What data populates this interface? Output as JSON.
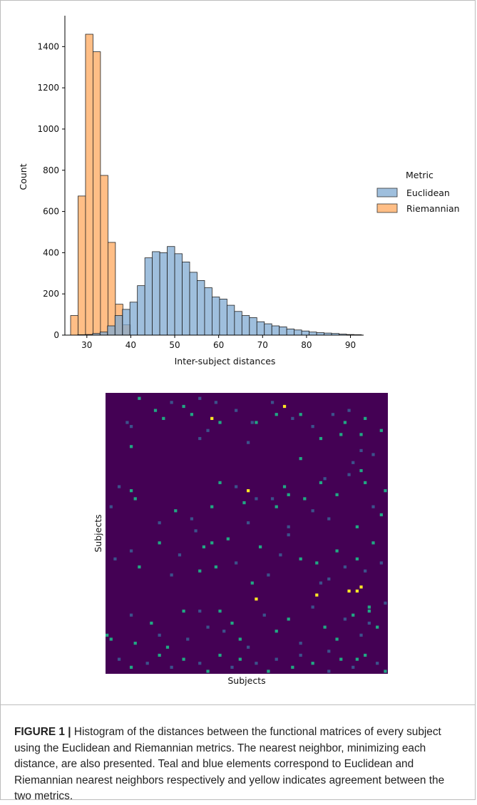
{
  "chart_data": [
    {
      "type": "bar",
      "subtype": "histogram",
      "xlabel": "Inter-subject distances",
      "ylabel": "Count",
      "xlim": [
        25,
        93
      ],
      "ylim": [
        0,
        1550
      ],
      "xticks": [
        30,
        40,
        50,
        60,
        70,
        80,
        90
      ],
      "yticks": [
        0,
        200,
        400,
        600,
        800,
        1000,
        1200,
        1400
      ],
      "legend": {
        "title": "Metric",
        "position": "right"
      },
      "series": [
        {
          "name": "Euclidean",
          "color": "#7fa9d1",
          "bin_width": 1.7,
          "bins_start": [
            27.9,
            29.6,
            31.3,
            33.0,
            34.7,
            36.4,
            38.1,
            39.8,
            41.5,
            43.2,
            44.9,
            46.6,
            48.3,
            50.0,
            51.7,
            53.4,
            55.1,
            56.8,
            58.5,
            60.2,
            61.9,
            63.6,
            65.3,
            67.0,
            68.7,
            70.4,
            72.1,
            73.8,
            75.5,
            77.2,
            78.9,
            80.6,
            82.3,
            84.0,
            85.7,
            87.4,
            89.1,
            90.8
          ],
          "values": [
            2,
            3,
            8,
            15,
            45,
            95,
            125,
            160,
            240,
            375,
            405,
            400,
            430,
            395,
            355,
            305,
            265,
            230,
            185,
            175,
            145,
            115,
            95,
            85,
            65,
            55,
            45,
            40,
            30,
            25,
            20,
            15,
            12,
            10,
            8,
            5,
            3,
            2
          ]
        },
        {
          "name": "Riemannian",
          "color": "#ffbe86",
          "bin_width": 1.7,
          "bins_start": [
            26.3,
            28.0,
            29.7,
            31.4,
            33.1,
            34.8,
            36.5,
            38.2
          ],
          "values": [
            95,
            675,
            1460,
            1375,
            775,
            450,
            150,
            50
          ]
        }
      ]
    },
    {
      "type": "heatmap",
      "xlabel": "Subjects",
      "ylabel": "Subjects",
      "rows": 70,
      "cols": 70,
      "colors": {
        "background": "#440154",
        "euclidean": "#21a883",
        "riemannian": "#3b528b",
        "agreement": "#fde725"
      },
      "cells": [
        [
          1,
          8,
          "e"
        ],
        [
          8,
          6,
          "r"
        ],
        [
          13,
          6,
          "e"
        ],
        [
          7,
          5,
          "r"
        ],
        [
          4,
          12,
          "e"
        ],
        [
          6,
          14,
          "e"
        ],
        [
          2,
          16,
          "r"
        ],
        [
          3,
          19,
          "e"
        ],
        [
          5,
          21,
          "e"
        ],
        [
          1,
          23,
          "r"
        ],
        [
          11,
          23,
          "r"
        ],
        [
          9,
          25,
          "r"
        ],
        [
          2,
          27,
          "r"
        ],
        [
          7,
          28,
          "e"
        ],
        [
          4,
          32,
          "r"
        ],
        [
          12,
          35,
          "r"
        ],
        [
          7,
          37,
          "e"
        ],
        [
          2,
          41,
          "r"
        ],
        [
          5,
          42,
          "e"
        ],
        [
          3,
          44,
          "a"
        ],
        [
          6,
          46,
          "r"
        ],
        [
          5,
          48,
          "e"
        ],
        [
          16,
          48,
          "e"
        ],
        [
          8,
          51,
          "r"
        ],
        [
          11,
          53,
          "e"
        ],
        [
          5,
          56,
          "r"
        ],
        [
          10,
          58,
          "e"
        ],
        [
          7,
          59,
          "e"
        ],
        [
          4,
          60,
          "r"
        ],
        [
          17,
          61,
          "r"
        ],
        [
          19,
          63,
          "e"
        ],
        [
          6,
          64,
          "e"
        ],
        [
          15,
          66,
          "r"
        ],
        [
          9,
          68,
          "e"
        ],
        [
          23,
          3,
          "r"
        ],
        [
          24,
          6,
          "e"
        ],
        [
          28,
          1,
          "r"
        ],
        [
          26,
          7,
          "e"
        ],
        [
          29,
          17,
          "e"
        ],
        [
          32,
          13,
          "r"
        ],
        [
          31,
          21,
          "r"
        ],
        [
          28,
          26,
          "e"
        ],
        [
          22,
          28,
          "e"
        ],
        [
          23,
          32,
          "r"
        ],
        [
          27,
          34,
          "e"
        ],
        [
          24,
          35,
          "a"
        ],
        [
          32,
          35,
          "r"
        ],
        [
          26,
          37,
          "r"
        ],
        [
          28,
          42,
          "e"
        ],
        [
          23,
          44,
          "e"
        ],
        [
          33,
          45,
          "r"
        ],
        [
          26,
          49,
          "e"
        ],
        [
          29,
          51,
          "r"
        ],
        [
          22,
          53,
          "e"
        ],
        [
          31,
          55,
          "r"
        ],
        [
          25,
          57,
          "e"
        ],
        [
          20,
          60,
          "r"
        ],
        [
          33,
          62,
          "e"
        ],
        [
          22,
          64,
          "e"
        ],
        [
          28,
          66,
          "r"
        ],
        [
          24,
          69,
          "e"
        ],
        [
          30,
          68,
          "e"
        ],
        [
          21,
          54,
          "r"
        ],
        [
          26,
          41,
          "r"
        ],
        [
          25,
          45,
          "e"
        ],
        [
          41,
          2,
          "r"
        ],
        [
          39,
          6,
          "r"
        ],
        [
          43,
          8,
          "e"
        ],
        [
          37,
          13,
          "e"
        ],
        [
          45,
          16,
          "r"
        ],
        [
          40,
          18,
          "r"
        ],
        [
          44,
          23,
          "e"
        ],
        [
          43,
          27,
          "e"
        ],
        [
          36,
          30,
          "e"
        ],
        [
          42,
          32,
          "r"
        ],
        [
          47,
          36,
          "e"
        ],
        [
          38,
          38,
          "e"
        ],
        [
          45,
          40,
          "r"
        ],
        [
          40,
          43,
          "r"
        ],
        [
          35,
          45,
          "r"
        ],
        [
          41,
          48,
          "e"
        ],
        [
          42,
          52,
          "e"
        ],
        [
          46,
          55,
          "r"
        ],
        [
          39,
          57,
          "e"
        ],
        [
          43,
          59,
          "r"
        ],
        [
          41,
          62,
          "e"
        ],
        [
          44,
          64,
          "r"
        ],
        [
          37,
          66,
          "e"
        ],
        [
          42,
          68,
          "r"
        ],
        [
          60,
          0,
          "e"
        ],
        [
          61,
          1,
          "e"
        ],
        [
          55,
          6,
          "r"
        ],
        [
          62,
          7,
          "e"
        ],
        [
          57,
          11,
          "e"
        ],
        [
          60,
          13,
          "r"
        ],
        [
          63,
          15,
          "e"
        ],
        [
          54,
          19,
          "e"
        ],
        [
          61,
          20,
          "r"
        ],
        [
          54,
          23,
          "r"
        ],
        [
          58,
          25,
          "r"
        ],
        [
          54,
          28,
          "e"
        ],
        [
          59,
          29,
          "r"
        ],
        [
          57,
          31,
          "e"
        ],
        [
          61,
          33,
          "e"
        ],
        [
          63,
          35,
          "r"
        ],
        [
          51,
          37,
          "a"
        ],
        [
          55,
          39,
          "r"
        ],
        [
          59,
          42,
          "e"
        ],
        [
          56,
          45,
          "e"
        ],
        [
          62,
          48,
          "r"
        ],
        [
          53,
          51,
          "r"
        ],
        [
          58,
          54,
          "e"
        ],
        [
          61,
          57,
          "e"
        ],
        [
          56,
          59,
          "r"
        ],
        [
          55,
          61,
          "e"
        ],
        [
          60,
          63,
          "r"
        ],
        [
          53,
          65,
          "e"
        ],
        [
          58,
          67,
          "e"
        ],
        [
          52,
          69,
          "r"
        ],
        [
          57,
          65,
          "r"
        ],
        [
          50,
          52,
          "a"
        ],
        [
          49,
          60,
          "a"
        ],
        [
          54,
          65,
          "e"
        ],
        [
          66,
          3,
          "r"
        ],
        [
          68,
          6,
          "e"
        ],
        [
          67,
          10,
          "r"
        ],
        [
          65,
          13,
          "e"
        ],
        [
          68,
          16,
          "r"
        ],
        [
          66,
          19,
          "e"
        ],
        [
          67,
          23,
          "r"
        ],
        [
          69,
          25,
          "e"
        ],
        [
          65,
          28,
          "e"
        ],
        [
          68,
          31,
          "r"
        ],
        [
          66,
          33,
          "e"
        ],
        [
          67,
          37,
          "r"
        ],
        [
          69,
          40,
          "e"
        ],
        [
          66,
          42,
          "r"
        ],
        [
          68,
          46,
          "e"
        ],
        [
          65,
          48,
          "r"
        ],
        [
          67,
          51,
          "e"
        ],
        [
          69,
          55,
          "r"
        ],
        [
          66,
          58,
          "e"
        ],
        [
          68,
          61,
          "r"
        ],
        [
          65,
          64,
          "e"
        ],
        [
          67,
          67,
          "r"
        ],
        [
          69,
          69,
          "e"
        ],
        [
          66,
          62,
          "e"
        ],
        [
          64,
          55,
          "r"
        ],
        [
          48,
          63,
          "a"
        ],
        [
          10,
          63,
          "e"
        ],
        [
          14,
          63,
          "r"
        ],
        [
          6,
          26,
          "a"
        ],
        [
          7,
          36,
          "r"
        ],
        [
          37,
          26,
          "e"
        ],
        [
          49,
          62,
          "a"
        ],
        [
          47,
          53,
          "r"
        ],
        [
          38,
          24,
          "e"
        ],
        [
          34,
          22,
          "r"
        ]
      ]
    }
  ],
  "caption": {
    "label": "FIGURE 1 |",
    "text": " Histogram of the distances between the functional matrices of every subject using the Euclidean and Riemannian metrics. The nearest neighbor, minimizing each distance, are also presented. Teal and blue elements correspond to Euclidean and Riemannian nearest neighbors respectively and yellow indicates agreement between the two metrics."
  }
}
